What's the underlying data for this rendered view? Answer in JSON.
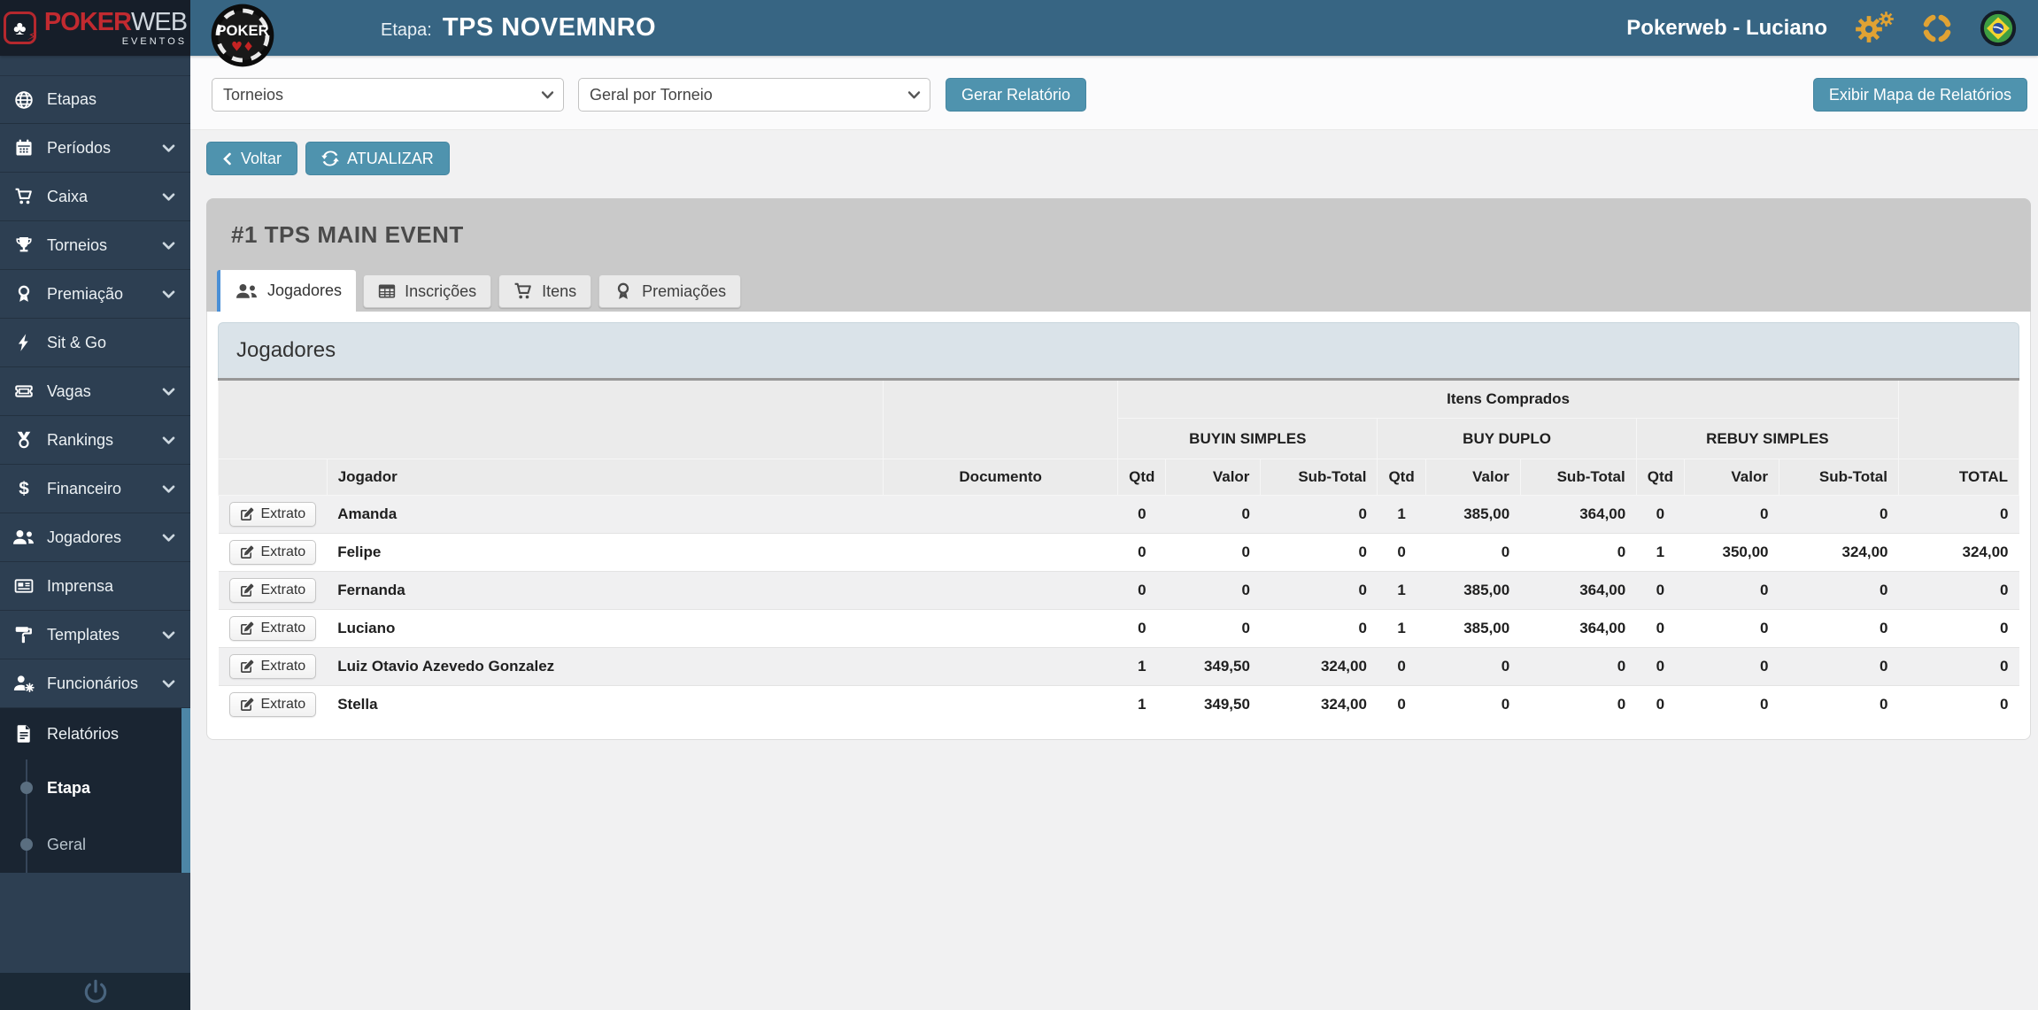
{
  "brand": {
    "poker": "POKER",
    "web": "WEB",
    "eventos": "EVENTOS",
    "club_glyph": "♣",
    "bolt_glyph": "⚡"
  },
  "header": {
    "chip_label": "POKER",
    "chip_suits": "♥♦",
    "etapa_label": "Etapa:",
    "etapa_value": "TPS NOVEMNRO",
    "user_label": "Pokerweb - Luciano"
  },
  "toolbar": {
    "report_type_select": "Torneios",
    "report_mode_select": "Geral por Torneio",
    "generate_button": "Gerar Relatório",
    "map_button": "Exibir Mapa de Relatórios",
    "back_button": "Voltar",
    "refresh_button": "ATUALIZAR"
  },
  "sidebar": {
    "items": [
      {
        "label": "Etapas",
        "icon": "globe",
        "chevron": false
      },
      {
        "label": "Períodos",
        "icon": "calendar",
        "chevron": true
      },
      {
        "label": "Caixa",
        "icon": "cart",
        "chevron": true
      },
      {
        "label": "Torneios",
        "icon": "trophy",
        "chevron": true
      },
      {
        "label": "Premiação",
        "icon": "award",
        "chevron": true
      },
      {
        "label": "Sit & Go",
        "icon": "bolt",
        "chevron": false
      },
      {
        "label": "Vagas",
        "icon": "ticket",
        "chevron": true
      },
      {
        "label": "Rankings",
        "icon": "medal",
        "chevron": true
      },
      {
        "label": "Financeiro",
        "icon": "dollar",
        "chevron": true
      },
      {
        "label": "Jogadores",
        "icon": "users",
        "chevron": true
      },
      {
        "label": "Imprensa",
        "icon": "newspaper",
        "chevron": false
      },
      {
        "label": "Templates",
        "icon": "paint-roller",
        "chevron": true
      },
      {
        "label": "Funcionários",
        "icon": "user-gear",
        "chevron": true
      }
    ],
    "active_section": {
      "label": "Relatórios",
      "icon": "file-report",
      "children": [
        {
          "label": "Etapa",
          "active": true
        },
        {
          "label": "Geral",
          "active": false
        }
      ]
    }
  },
  "panel": {
    "title": "#1 TPS MAIN EVENT",
    "tabs": [
      {
        "label": "Jogadores",
        "icon": "users",
        "active": true
      },
      {
        "label": "Inscrições",
        "icon": "table",
        "active": false
      },
      {
        "label": "Itens",
        "icon": "cart",
        "active": false
      },
      {
        "label": "Premiações",
        "icon": "award",
        "active": false
      }
    ],
    "box_title": "Jogadores"
  },
  "table": {
    "extrato_button": "Extrato",
    "items_group": "Itens Comprados",
    "groups": [
      "BUYIN SIMPLES",
      "BUY DUPLO",
      "REBUY SIMPLES"
    ],
    "sub_columns": [
      "Qtd",
      "Valor",
      "Sub-Total"
    ],
    "columns": {
      "jogador": "Jogador",
      "documento": "Documento",
      "total": "TOTAL"
    },
    "rows": [
      {
        "jogador": "Amanda",
        "documento": "",
        "buyin_simples": [
          "0",
          "0",
          "0"
        ],
        "buy_duplo": [
          "1",
          "385,00",
          "364,00"
        ],
        "rebuy_simples": [
          "0",
          "0",
          "0"
        ],
        "total": "0"
      },
      {
        "jogador": "Felipe",
        "documento": "",
        "buyin_simples": [
          "0",
          "0",
          "0"
        ],
        "buy_duplo": [
          "0",
          "0",
          "0"
        ],
        "rebuy_simples": [
          "1",
          "350,00",
          "324,00"
        ],
        "total": "324,00"
      },
      {
        "jogador": "Fernanda",
        "documento": "",
        "buyin_simples": [
          "0",
          "0",
          "0"
        ],
        "buy_duplo": [
          "1",
          "385,00",
          "364,00"
        ],
        "rebuy_simples": [
          "0",
          "0",
          "0"
        ],
        "total": "0"
      },
      {
        "jogador": "Luciano",
        "documento": "",
        "buyin_simples": [
          "0",
          "0",
          "0"
        ],
        "buy_duplo": [
          "1",
          "385,00",
          "364,00"
        ],
        "rebuy_simples": [
          "0",
          "0",
          "0"
        ],
        "total": "0"
      },
      {
        "jogador": "Luiz Otavio Azevedo Gonzalez",
        "documento": "",
        "buyin_simples": [
          "1",
          "349,50",
          "324,00"
        ],
        "buy_duplo": [
          "0",
          "0",
          "0"
        ],
        "rebuy_simples": [
          "0",
          "0",
          "0"
        ],
        "total": "0"
      },
      {
        "jogador": "Stella",
        "documento": "",
        "buyin_simples": [
          "1",
          "349,50",
          "324,00"
        ],
        "buy_duplo": [
          "0",
          "0",
          "0"
        ],
        "rebuy_simples": [
          "0",
          "0",
          "0"
        ],
        "total": "0"
      }
    ]
  },
  "colors": {
    "header_bg": "#376583",
    "brand_bg": "#161e29",
    "brand_red": "#c22a30",
    "sidebar_bg": "#2d3f52",
    "sidebar_active_bg": "#1a2532",
    "accent_bar": "#4d86a6",
    "button_teal": "#4f93ae",
    "orange_icon": "#e0a233",
    "tab_active_border": "#4a8fd6",
    "box_header_bg": "#dae3e9",
    "panel_gray": "#c9c9c9"
  }
}
